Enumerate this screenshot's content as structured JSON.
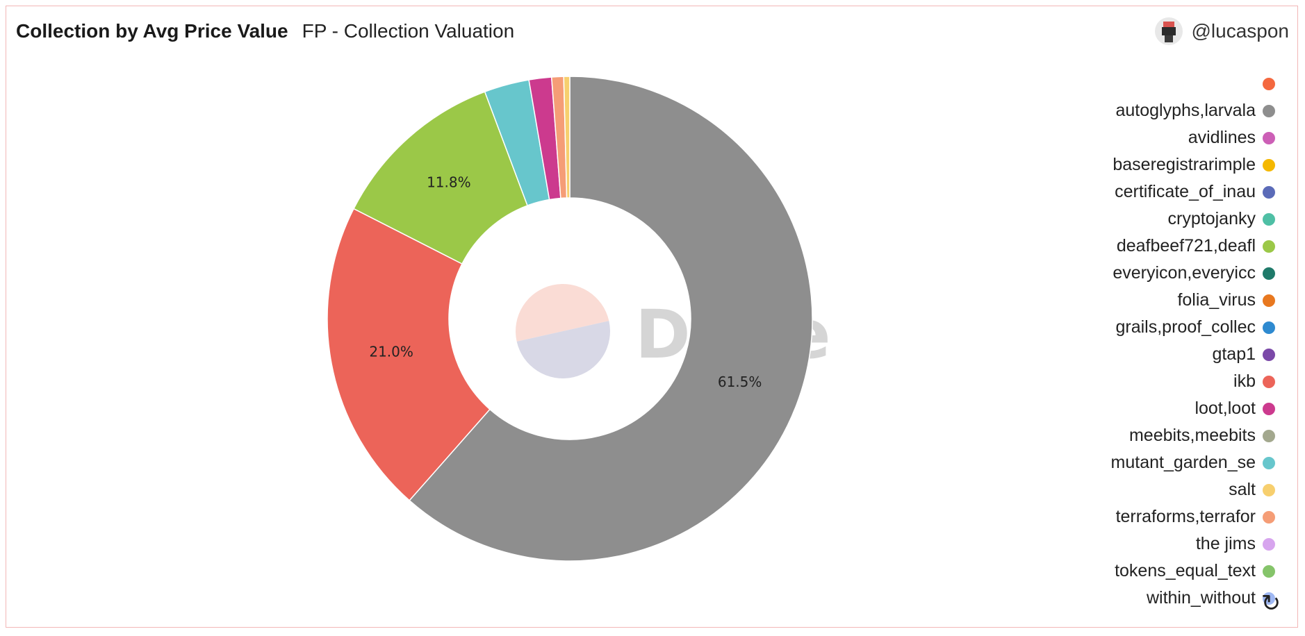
{
  "header": {
    "title": "Collection by Avg Price Value",
    "subtitle": "FP - Collection Valuation"
  },
  "user": {
    "username": "@lucaspon"
  },
  "watermark": "Dune",
  "icons": {
    "refresh": "refresh-icon",
    "avatar": "avatar-image"
  },
  "legend": {
    "items": [
      {
        "label": "",
        "color": "#f4683f"
      },
      {
        "label": "autoglyphs,larvala",
        "color": "#8e8e8e"
      },
      {
        "label": "avidlines",
        "color": "#cc5fb6"
      },
      {
        "label": "baseregistrarimple",
        "color": "#f5b800"
      },
      {
        "label": "certificate_of_inau",
        "color": "#5b6bb8"
      },
      {
        "label": "cryptojanky",
        "color": "#4fbfa5"
      },
      {
        "label": "deafbeef721,deafl",
        "color": "#9bc848"
      },
      {
        "label": "everyicon,everyicc",
        "color": "#1f7a6a"
      },
      {
        "label": "folia_virus",
        "color": "#e8781f"
      },
      {
        "label": "grails,proof_collec",
        "color": "#2e8ad0"
      },
      {
        "label": "gtap1",
        "color": "#7b49a8"
      },
      {
        "label": "ikb",
        "color": "#ec6459"
      },
      {
        "label": "loot,loot",
        "color": "#cc3a8e"
      },
      {
        "label": "meebits,meebits",
        "color": "#a3a88e"
      },
      {
        "label": "mutant_garden_se",
        "color": "#67c6cc"
      },
      {
        "label": "salt",
        "color": "#f7cf6e"
      },
      {
        "label": "terraforms,terrafor",
        "color": "#f59d76"
      },
      {
        "label": "the jims",
        "color": "#d7a5ee"
      },
      {
        "label": "tokens_equal_text",
        "color": "#85c46a"
      },
      {
        "label": "within_without",
        "color": "#9fb8f3"
      }
    ]
  },
  "chart_data": {
    "type": "pie",
    "title": "Collection by Avg Price Value",
    "donut": true,
    "slices": [
      {
        "name": "autoglyphs,larvala",
        "value": 61.5,
        "label": "61.5%",
        "color": "#8e8e8e"
      },
      {
        "name": "ikb",
        "value": 21.0,
        "label": "21.0%",
        "color": "#ec6459"
      },
      {
        "name": "deafbeef721,deafl",
        "value": 11.8,
        "label": "11.8%",
        "color": "#9bc848"
      },
      {
        "name": "mutant_garden_se",
        "value": 3.0,
        "label": "",
        "color": "#67c6cc"
      },
      {
        "name": "loot,loot",
        "value": 1.5,
        "label": "",
        "color": "#cc3a8e"
      },
      {
        "name": "terraforms,terrafor",
        "value": 0.8,
        "label": "",
        "color": "#f59d76"
      },
      {
        "name": "salt",
        "value": 0.4,
        "label": "",
        "color": "#f7cf6e"
      }
    ],
    "legend_position": "right"
  }
}
